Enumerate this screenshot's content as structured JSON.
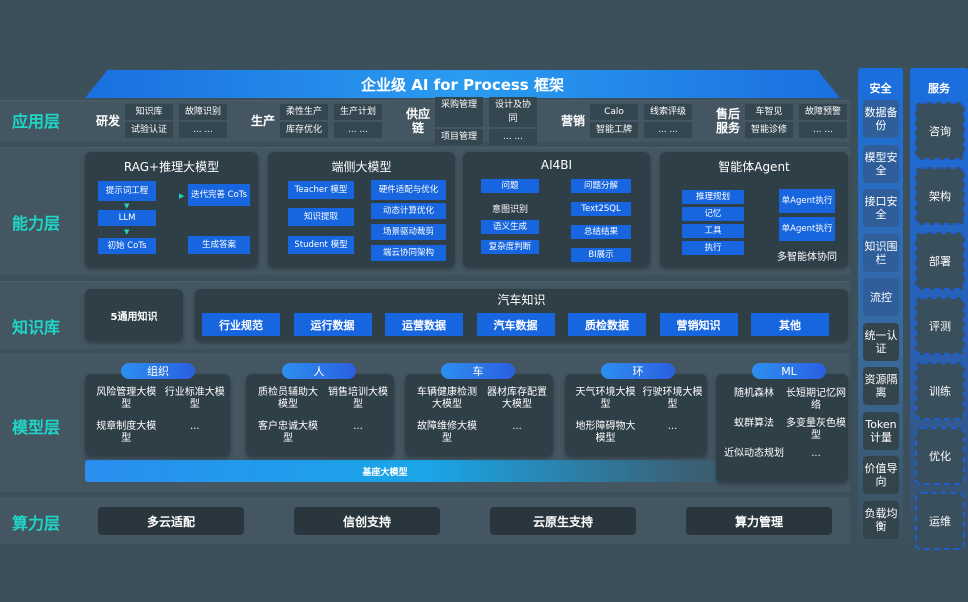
{
  "title": "企业级 AI for Process 框架",
  "layers": [
    "应用层",
    "能力层",
    "知识库",
    "模型层",
    "算力层"
  ],
  "app": [
    {
      "name": "研发",
      "cells": [
        "知识库",
        "故障识别",
        "试验认证",
        "... ..."
      ]
    },
    {
      "name": "生产",
      "cells": [
        "柔性生产",
        "生产计划",
        "库存优化",
        "... ..."
      ]
    },
    {
      "name": "供应链",
      "cells": [
        "采购管理",
        "设计及协同",
        "项目管理",
        "... ..."
      ]
    },
    {
      "name": "营销",
      "cells": [
        "Calo",
        "线索评级",
        "智能工牌",
        "... ..."
      ]
    },
    {
      "name": "售后服务",
      "cells": [
        "车智见",
        "故障预警",
        "智能诊修",
        "... ..."
      ]
    }
  ],
  "capability": {
    "rag": {
      "title": "RAG+推理大模型",
      "boxes": [
        "提示词工程",
        "LLM",
        "初始 CoTs",
        "迭代完善 CoTs",
        "生成答案"
      ]
    },
    "edge": {
      "title": "端侧大模型",
      "boxes": [
        "Teacher 模型",
        "知识提取",
        "Student 模型",
        "硬件适配与优化",
        "动态计算优化",
        "场景驱动裁剪",
        "端云协同架构"
      ]
    },
    "ai4bi": {
      "title": "AI4BI",
      "boxes": [
        "问题",
        "意图识别",
        "语义生成",
        "复杂度判断",
        "问题分解",
        "Text2SQL",
        "总结结果",
        "BI展示"
      ]
    },
    "agent": {
      "title": "智能体Agent",
      "boxes": [
        "推理规划",
        "记忆",
        "工具",
        "执行",
        "单Agent执行",
        "单Agent执行"
      ],
      "caption": "多智能体协同"
    }
  },
  "knowledge": {
    "general": "5通用知识",
    "title": "汽车知识",
    "items": [
      "行业规范",
      "运行数据",
      "运营数据",
      "汽车数据",
      "质检数据",
      "营销知识",
      "其他"
    ]
  },
  "models": {
    "groups": [
      {
        "name": "组织",
        "cells": [
          "风险管理大模型",
          "行业标准大模型",
          "规章制度大模型",
          "..."
        ]
      },
      {
        "name": "人",
        "cells": [
          "质检员辅助大模型",
          "销售培训大模型",
          "客户忠诚大模型",
          "..."
        ]
      },
      {
        "name": "车",
        "cells": [
          "车辆健康检测大模型",
          "器材库存配置大模型",
          "故障维修大模型",
          "..."
        ]
      },
      {
        "name": "环",
        "cells": [
          "天气环境大模型",
          "行驶环境大模型",
          "地形障碍物大模型",
          "..."
        ]
      },
      {
        "name": "ML",
        "cells": [
          "随机森林",
          "长短期记忆网络",
          "蚁群算法",
          "多变量灰色模型",
          "近似动态规划",
          "..."
        ]
      }
    ],
    "base": "基座大模型"
  },
  "compute": [
    "多云适配",
    "信创支持",
    "云原生支持",
    "算力管理"
  ],
  "security": {
    "title": "安全",
    "items": [
      "数据备份",
      "模型安全",
      "接口安全",
      "知识围栏",
      "流控",
      "统一认证",
      "资源隔离",
      "Token计量",
      "价值导向",
      "负载均衡"
    ]
  },
  "service": {
    "title": "服务",
    "items": [
      "咨询",
      "架构",
      "部署",
      "评测",
      "训练",
      "优化",
      "运维"
    ]
  }
}
